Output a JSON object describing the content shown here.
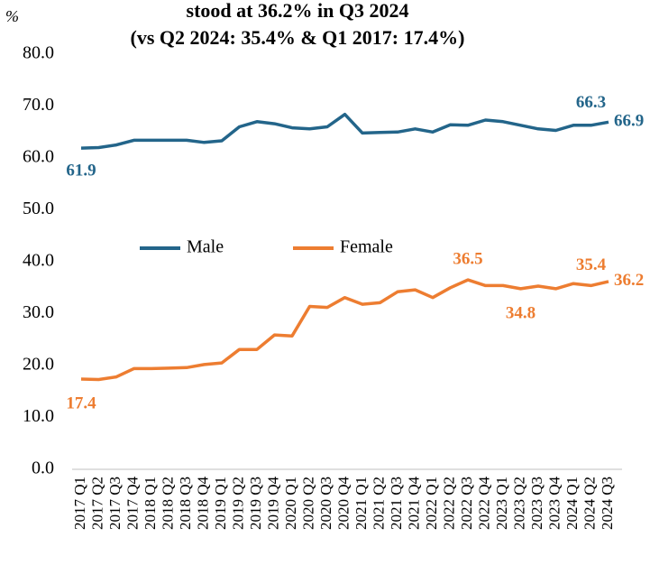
{
  "chart_data": {
    "type": "line",
    "title": "stood at 36.2% in Q3 2024",
    "subtitle": "(vs Q2 2024: 35.4% & Q1 2017: 17.4%)",
    "y_label": "%",
    "categories": [
      "2017 Q1",
      "2017 Q2",
      "2017 Q3",
      "2017 Q4",
      "2018 Q1",
      "2018 Q2",
      "2018 Q3",
      "2018 Q4",
      "2019 Q1",
      "2019 Q2",
      "2019 Q3",
      "2019 Q4",
      "2020 Q1",
      "2020 Q2",
      "2020 Q3",
      "2020 Q4",
      "2021 Q1",
      "2021 Q2",
      "2021 Q3",
      "2021 Q4",
      "2022 Q1",
      "2022 Q2",
      "2022 Q3",
      "2022 Q4",
      "2023 Q1",
      "2023 Q2",
      "2023 Q3",
      "2023 Q4",
      "2024 Q1",
      "2024 Q2",
      "2024 Q3"
    ],
    "series": [
      {
        "name": "Male",
        "color": "#23658a",
        "values": [
          61.9,
          62.0,
          62.5,
          63.4,
          63.4,
          63.4,
          63.4,
          63.0,
          63.3,
          66.0,
          67.0,
          66.6,
          65.8,
          65.6,
          66.0,
          68.4,
          64.8,
          64.9,
          65.0,
          65.6,
          65.0,
          66.4,
          66.3,
          67.3,
          67.0,
          66.3,
          65.6,
          65.3,
          66.3,
          66.3,
          66.9
        ],
        "value_labels": [
          "61.9",
          null,
          null,
          null,
          null,
          null,
          null,
          null,
          null,
          null,
          null,
          null,
          null,
          null,
          null,
          null,
          null,
          null,
          null,
          null,
          null,
          null,
          null,
          null,
          null,
          null,
          null,
          null,
          null,
          "66.3",
          "66.9"
        ]
      },
      {
        "name": "Female",
        "color": "#ed7d31",
        "values": [
          17.4,
          17.3,
          17.8,
          19.4,
          19.4,
          19.5,
          19.6,
          20.2,
          20.5,
          23.1,
          23.1,
          25.9,
          25.7,
          31.4,
          31.2,
          33.1,
          31.8,
          32.1,
          34.2,
          34.6,
          33.1,
          35.0,
          36.5,
          35.4,
          35.4,
          34.8,
          35.3,
          34.8,
          35.8,
          35.4,
          36.2
        ],
        "value_labels": [
          "17.4",
          null,
          null,
          null,
          null,
          null,
          null,
          null,
          null,
          null,
          null,
          null,
          null,
          null,
          null,
          null,
          null,
          null,
          null,
          null,
          null,
          null,
          "36.5",
          null,
          null,
          "34.8",
          null,
          null,
          null,
          "35.4",
          "36.2"
        ]
      }
    ],
    "ylim": [
      0,
      80
    ],
    "yticks": [
      {
        "value": 0,
        "label": "0.0"
      },
      {
        "value": 10,
        "label": "10.0"
      },
      {
        "value": 20,
        "label": "20.0"
      },
      {
        "value": 30,
        "label": "30.0"
      },
      {
        "value": 40,
        "label": "40.0"
      },
      {
        "value": 50,
        "label": "50.0"
      },
      {
        "value": 60,
        "label": "60.0"
      },
      {
        "value": 70,
        "label": "70.0"
      },
      {
        "value": 80,
        "label": "80.0"
      }
    ],
    "grid": false,
    "legend": "center"
  }
}
